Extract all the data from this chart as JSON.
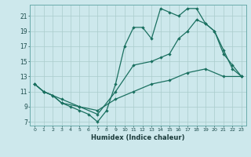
{
  "xlabel": "Humidex (Indice chaleur)",
  "bg_color": "#cde8ec",
  "grid_color": "#aacccc",
  "line_color": "#1a7060",
  "xlim": [
    -0.5,
    23.5
  ],
  "ylim": [
    6.5,
    22.5
  ],
  "xticks": [
    0,
    1,
    2,
    3,
    4,
    5,
    6,
    7,
    8,
    9,
    10,
    11,
    12,
    13,
    14,
    15,
    16,
    17,
    18,
    19,
    20,
    21,
    22,
    23
  ],
  "yticks": [
    7,
    9,
    11,
    13,
    15,
    17,
    19,
    21
  ],
  "line1_x": [
    0,
    1,
    2,
    3,
    4,
    5,
    6,
    7,
    8,
    9,
    10,
    11,
    12,
    13,
    14,
    15,
    16,
    17,
    18,
    19,
    20,
    21,
    22,
    23
  ],
  "line1_y": [
    12,
    11,
    10.5,
    9.5,
    9,
    8.5,
    8,
    7,
    8.5,
    12,
    17,
    19.5,
    19.5,
    18,
    22,
    21.5,
    21,
    22,
    22,
    20,
    19,
    16,
    14.5,
    13
  ],
  "line2_x": [
    0,
    1,
    3,
    5,
    7,
    9,
    11,
    13,
    14,
    15,
    16,
    17,
    18,
    19,
    20,
    21,
    22,
    23
  ],
  "line2_y": [
    12,
    11,
    10,
    9,
    8,
    11,
    14.5,
    15,
    15.5,
    16,
    18,
    19,
    20.5,
    20,
    19,
    16.5,
    14,
    13
  ],
  "line3_x": [
    0,
    1,
    2,
    3,
    5,
    7,
    9,
    11,
    13,
    15,
    17,
    19,
    21,
    23
  ],
  "line3_y": [
    12,
    11,
    10.5,
    9.5,
    9,
    8.5,
    10,
    11,
    12,
    12.5,
    13.5,
    14,
    13,
    13
  ]
}
